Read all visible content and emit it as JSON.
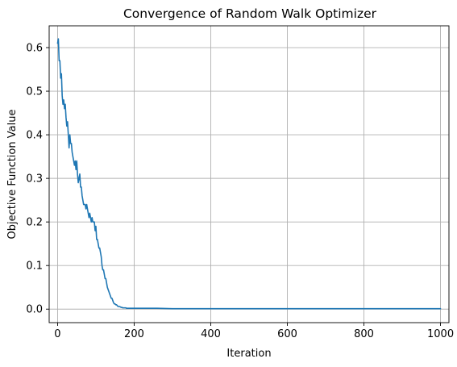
{
  "chart_data": {
    "type": "line",
    "title": "Convergence of Random Walk Optimizer",
    "xlabel": "Iteration",
    "ylabel": "Objective Function Value",
    "xlim": [
      -22,
      1022
    ],
    "ylim": [
      -0.031,
      0.65
    ],
    "xticks": [
      0,
      200,
      400,
      600,
      800,
      1000
    ],
    "yticks": [
      0.0,
      0.1,
      0.2,
      0.3,
      0.4,
      0.5,
      0.6
    ],
    "xtick_labels": [
      "0",
      "200",
      "400",
      "600",
      "800",
      "1000"
    ],
    "ytick_labels": [
      "0.0",
      "0.1",
      "0.2",
      "0.3",
      "0.4",
      "0.5",
      "0.6"
    ],
    "grid": true,
    "legend": false,
    "series": [
      {
        "color": "#1f77b4",
        "x": [
          0,
          2,
          4,
          6,
          8,
          10,
          12,
          14,
          16,
          18,
          20,
          22,
          24,
          26,
          28,
          30,
          32,
          34,
          36,
          38,
          40,
          42,
          44,
          46,
          48,
          50,
          52,
          54,
          56,
          58,
          60,
          62,
          64,
          66,
          68,
          70,
          72,
          74,
          76,
          78,
          80,
          82,
          84,
          86,
          88,
          90,
          92,
          94,
          96,
          98,
          100,
          102,
          104,
          106,
          108,
          110,
          112,
          114,
          116,
          118,
          120,
          122,
          124,
          126,
          128,
          130,
          132,
          134,
          136,
          138,
          140,
          142,
          144,
          146,
          148,
          150,
          152,
          154,
          156,
          158,
          160,
          162,
          164,
          166,
          168,
          170,
          172,
          174,
          176,
          178,
          180,
          182,
          184,
          186,
          188,
          190,
          192,
          194,
          196,
          198,
          200,
          202,
          204,
          206,
          208,
          210,
          215,
          220,
          230,
          240,
          260,
          300,
          350,
          400,
          500,
          600,
          700,
          800,
          900,
          1000
        ],
        "y": [
          0.61,
          0.62,
          0.57,
          0.57,
          0.53,
          0.54,
          0.49,
          0.47,
          0.48,
          0.46,
          0.47,
          0.44,
          0.42,
          0.43,
          0.4,
          0.37,
          0.4,
          0.38,
          0.38,
          0.36,
          0.35,
          0.34,
          0.33,
          0.34,
          0.32,
          0.34,
          0.31,
          0.29,
          0.3,
          0.31,
          0.28,
          0.28,
          0.26,
          0.25,
          0.24,
          0.24,
          0.24,
          0.23,
          0.24,
          0.23,
          0.22,
          0.21,
          0.22,
          0.21,
          0.2,
          0.21,
          0.2,
          0.2,
          0.2,
          0.18,
          0.19,
          0.16,
          0.16,
          0.15,
          0.14,
          0.14,
          0.13,
          0.12,
          0.1,
          0.09,
          0.09,
          0.08,
          0.07,
          0.07,
          0.06,
          0.05,
          0.045,
          0.04,
          0.035,
          0.03,
          0.025,
          0.025,
          0.02,
          0.015,
          0.012,
          0.012,
          0.01,
          0.01,
          0.008,
          0.006,
          0.006,
          0.006,
          0.005,
          0.004,
          0.004,
          0.003,
          0.003,
          0.003,
          0.003,
          0.003,
          0.002,
          0.002,
          0.002,
          0.002,
          0.002,
          0.002,
          0.002,
          0.002,
          0.002,
          0.002,
          0.002,
          0.002,
          0.002,
          0.002,
          0.002,
          0.002,
          0.002,
          0.002,
          0.002,
          0.002,
          0.002,
          0.001,
          0.001,
          0.001,
          0.001,
          0.001,
          0.001,
          0.001,
          0.001,
          0.001
        ]
      }
    ]
  }
}
